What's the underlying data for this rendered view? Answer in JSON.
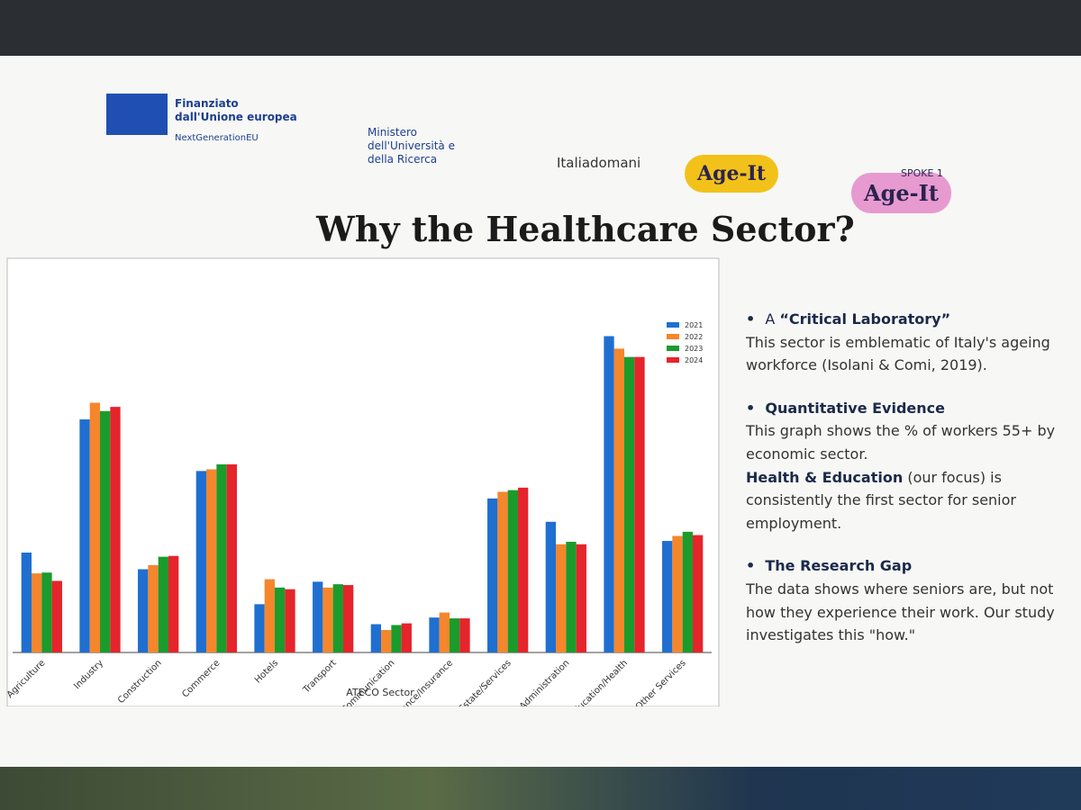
{
  "header": {
    "logos": [
      "Finanziato dall'Unione europea",
      "NextGenerationEU",
      "Ministero dell'Università e della Ricerca",
      "Italiadomani",
      "Age-It",
      "SPOKE 1",
      "Age-It"
    ]
  },
  "title": "Why the Healthcare Sector?",
  "bullets": [
    {
      "prefix": "A ",
      "heading": "“Critical Laboratory”",
      "paragraphs": [
        {
          "text": "This sector is emblematic of Italy's ageing workforce (Isolani & Comi, 2019)."
        }
      ]
    },
    {
      "heading": "Quantitative Evidence",
      "paragraphs": [
        {
          "text": "This graph shows the % of workers 55+ by economic sector."
        },
        {
          "bold": "Health & Education",
          "text": " (our focus) is consistently the first sector for senior employment."
        }
      ]
    },
    {
      "heading": "The Research Gap",
      "paragraphs": [
        {
          "text": "The data shows where seniors are, but not how they experience their work. Our study investigates this \"how.\""
        }
      ]
    }
  ],
  "chart_data": {
    "type": "bar",
    "x_label": "ATECO Sector",
    "categories": [
      "Agriculture",
      "Industry",
      "Construction",
      "Commerce",
      "Hotels",
      "Transport",
      "Info/Communication",
      "Finance/Insurance",
      "Real Estate/Services",
      "Public Administration",
      "Education/Health",
      "Other Services"
    ],
    "series": [
      {
        "name": "2021",
        "color": "#1f6fd1",
        "values": [
          12,
          28,
          10,
          21.8,
          5.8,
          8.5,
          3.4,
          4.2,
          18.5,
          15.7,
          38,
          13.4
        ]
      },
      {
        "name": "2022",
        "color": "#f5862c",
        "values": [
          9.5,
          30,
          10.5,
          22,
          8.8,
          7.8,
          2.7,
          4.8,
          19.3,
          13,
          36.5,
          14
        ]
      },
      {
        "name": "2023",
        "color": "#1b9b2c",
        "values": [
          9.6,
          29,
          11.5,
          22.6,
          7.8,
          8.2,
          3.3,
          4.1,
          19.5,
          13.3,
          35.5,
          14.5
        ]
      },
      {
        "name": "2024",
        "color": "#e5242b",
        "values": [
          8.6,
          29.5,
          11.6,
          22.6,
          7.6,
          8.1,
          3.5,
          4.1,
          19.8,
          13,
          35.5,
          14.1
        ]
      }
    ],
    "ylim": [
      0,
      40
    ],
    "legend": "upper right"
  }
}
